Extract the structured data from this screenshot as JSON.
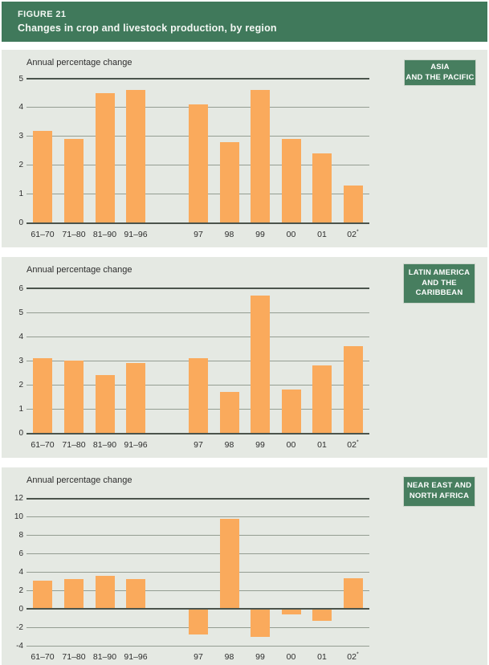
{
  "figure": {
    "label": "FIGURE 21",
    "title": "Changes in crop and livestock production, by region"
  },
  "y_axis_title": "Annual percentage change",
  "colors": {
    "header_green": "#40795b",
    "region_box_green": "#477e5f",
    "panel_background": "#e5e9e3",
    "bar_orange": "#faaa5c",
    "grid_light": "#949d92",
    "grid_dark": "#4b544c",
    "text": "#2d2d2d"
  },
  "regions": [
    {
      "name": "Asia and the Pacific",
      "lines": [
        "ASIA",
        "AND THE PACIFIC"
      ]
    },
    {
      "name": "Latin America and the Caribbean",
      "lines": [
        "LATIN AMERICA",
        "AND THE",
        "CARIBBEAN"
      ]
    },
    {
      "name": "Near East and North Africa",
      "lines": [
        "NEAR EAST AND",
        "NORTH AFRICA"
      ]
    }
  ],
  "chart_data": [
    {
      "type": "bar",
      "title": "Asia and the Pacific",
      "ylabel": "Annual percentage change",
      "categories": [
        "61–70",
        "71–80",
        "81–90",
        "91–96",
        "97",
        "98",
        "99",
        "00",
        "01",
        "02*"
      ],
      "values": [
        3.2,
        2.9,
        4.5,
        4.6,
        4.1,
        2.8,
        4.6,
        2.9,
        2.4,
        1.3
      ],
      "ylim": [
        0,
        5
      ],
      "ytick_step": 1,
      "grid": true,
      "legend": "none",
      "bar_color": "#faaa5c"
    },
    {
      "type": "bar",
      "title": "Latin America and the Caribbean",
      "ylabel": "Annual percentage change",
      "categories": [
        "61–70",
        "71–80",
        "81–90",
        "91–96",
        "97",
        "98",
        "99",
        "00",
        "01",
        "02*"
      ],
      "values": [
        3.1,
        3.0,
        2.4,
        2.9,
        3.1,
        1.7,
        5.7,
        1.8,
        2.8,
        3.6
      ],
      "ylim": [
        0,
        6
      ],
      "ytick_step": 1,
      "grid": true,
      "legend": "none",
      "bar_color": "#faaa5c"
    },
    {
      "type": "bar",
      "title": "Near East and North Africa",
      "ylabel": "Annual percentage change",
      "categories": [
        "61–70",
        "71–80",
        "81–90",
        "91–96",
        "97",
        "98",
        "99",
        "00",
        "01",
        "02*"
      ],
      "values": [
        3.1,
        3.2,
        3.6,
        3.2,
        -2.8,
        9.8,
        -3.0,
        -0.6,
        -1.3,
        3.3
      ],
      "ylim": [
        -4,
        12
      ],
      "ytick_step": 2,
      "grid": true,
      "legend": "none",
      "bar_color": "#faaa5c"
    }
  ]
}
